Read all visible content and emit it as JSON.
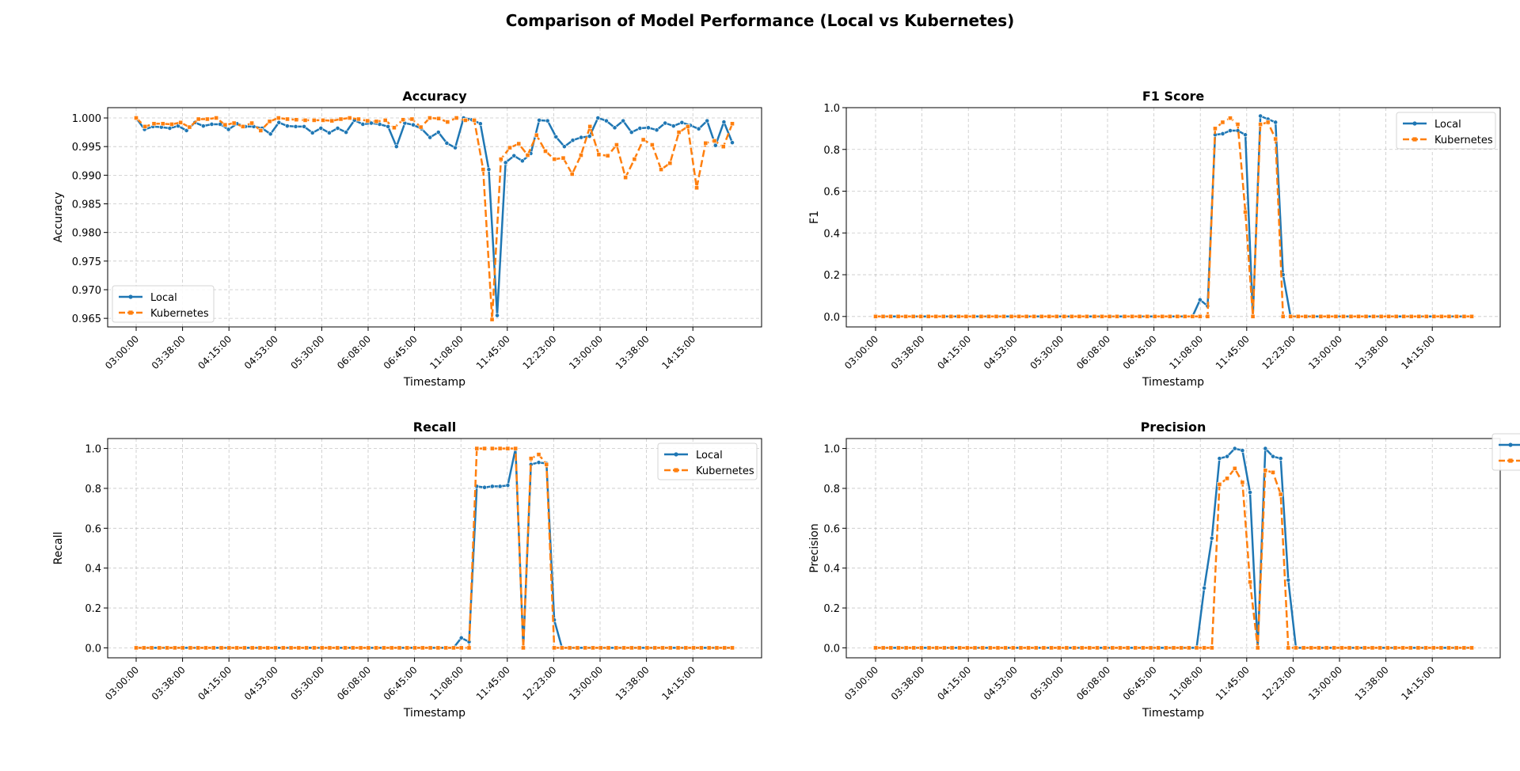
{
  "figure": {
    "title": "Comparison of Model Performance (Local vs Kubernetes)"
  },
  "colors": {
    "local": "#1f77b4",
    "kubernetes": "#ff7f0e",
    "grid": "#b0b0b0"
  },
  "chart_data": [
    {
      "type": "line",
      "title": "Accuracy",
      "xlabel": "Timestamp",
      "ylabel": "Accuracy",
      "grid": true,
      "legend_position": "lower-left",
      "ylim": [
        0.9635,
        1.0018
      ],
      "yticks": [
        0.965,
        0.97,
        0.975,
        0.98,
        0.985,
        0.99,
        0.995,
        1.0
      ],
      "ytick_labels": [
        "0.965",
        "0.970",
        "0.975",
        "0.980",
        "0.985",
        "0.990",
        "0.995",
        "1.000"
      ],
      "xtick_labels": [
        "03:00:00",
        "03:38:00",
        "04:15:00",
        "04:53:00",
        "05:30:00",
        "06:08:00",
        "06:45:00",
        "11:08:00",
        "11:45:00",
        "12:23:00",
        "13:00:00",
        "13:38:00",
        "14:15:00"
      ],
      "series": [
        {
          "name": "Local",
          "values": [
            1.0,
            0.998,
            0.9985,
            0.9984,
            0.9982,
            0.9986,
            0.9978,
            0.9992,
            0.9986,
            0.9989,
            0.9989,
            0.998,
            0.999,
            0.9985,
            0.9985,
            0.9982,
            0.9972,
            0.9992,
            0.9986,
            0.9985,
            0.9985,
            0.9974,
            0.9982,
            0.9974,
            0.9982,
            0.9975,
            0.9996,
            0.9989,
            0.9991,
            0.9989,
            0.9985,
            0.995,
            0.9991,
            0.9988,
            0.9981,
            0.9966,
            0.9975,
            0.9956,
            0.9948,
            1.0,
            0.9997,
            0.999,
            0.991,
            0.9655,
            0.9922,
            0.9934,
            0.9925,
            0.9938,
            0.9996,
            0.9995,
            0.9967,
            0.995,
            0.9961,
            0.9966,
            0.9968,
            1.0,
            0.9995,
            0.9983,
            0.9995,
            0.9975,
            0.9982,
            0.9983,
            0.9979,
            0.9991,
            0.9986,
            0.9992,
            0.9987,
            0.9981,
            0.9995,
            0.9952,
            0.9993,
            0.9957
          ]
        },
        {
          "name": "Kubernetes",
          "values": [
            1.0,
            0.9985,
            0.999,
            0.999,
            0.9989,
            0.9992,
            0.9984,
            0.9998,
            0.9998,
            1.0,
            0.9988,
            0.9991,
            0.9985,
            0.9991,
            0.9978,
            0.9994,
            1.0,
            0.9998,
            0.9997,
            0.9996,
            0.9996,
            0.9996,
            0.9995,
            0.9998,
            1.0,
            0.9998,
            0.9995,
            0.9994,
            0.9996,
            0.9983,
            0.9997,
            0.9998,
            0.9984,
            1.0,
            0.9999,
            0.9993,
            1.0,
            0.9996,
            0.9996,
            0.991,
            0.9648,
            0.9928,
            0.9948,
            0.9955,
            0.9935,
            0.997,
            0.9942,
            0.9928,
            0.993,
            0.9902,
            0.9935,
            0.9985,
            0.9936,
            0.9934,
            0.9953,
            0.9896,
            0.9928,
            0.9962,
            0.9953,
            0.991,
            0.9921,
            0.9975,
            0.9985,
            0.9878,
            0.9956,
            0.996,
            0.995,
            0.999
          ]
        }
      ]
    },
    {
      "type": "line",
      "title": "F1 Score",
      "xlabel": "Timestamp",
      "ylabel": "F1",
      "grid": true,
      "legend_position": "upper-right",
      "ylim": [
        -0.05,
        1.0
      ],
      "yticks": [
        0,
        0.2,
        0.4,
        0.6,
        0.8,
        1.0
      ],
      "ytick_labels": [
        "0.0",
        "0.2",
        "0.4",
        "0.6",
        "0.8",
        "1.0"
      ],
      "xtick_labels": [
        "03:00:00",
        "03:38:00",
        "04:15:00",
        "04:53:00",
        "05:30:00",
        "06:08:00",
        "06:45:00",
        "11:08:00",
        "11:45:00",
        "12:23:00",
        "13:00:00",
        "13:38:00",
        "14:15:00"
      ],
      "series": [
        {
          "name": "Local",
          "values": [
            0,
            0,
            0,
            0,
            0,
            0,
            0,
            0,
            0,
            0,
            0,
            0,
            0,
            0,
            0,
            0,
            0,
            0,
            0,
            0,
            0,
            0,
            0,
            0,
            0,
            0,
            0,
            0,
            0,
            0,
            0,
            0,
            0,
            0,
            0,
            0,
            0,
            0,
            0,
            0,
            0,
            0,
            0,
            0.08,
            0.05,
            0.87,
            0.875,
            0.89,
            0.89,
            0.87,
            0.0,
            0.96,
            0.945,
            0.93,
            0.2,
            0,
            0,
            0,
            0,
            0,
            0,
            0,
            0,
            0,
            0,
            0,
            0,
            0,
            0,
            0,
            0,
            0,
            0,
            0,
            0,
            0,
            0,
            0,
            0,
            0
          ]
        },
        {
          "name": "Kubernetes",
          "values": [
            0,
            0,
            0,
            0,
            0,
            0,
            0,
            0,
            0,
            0,
            0,
            0,
            0,
            0,
            0,
            0,
            0,
            0,
            0,
            0,
            0,
            0,
            0,
            0,
            0,
            0,
            0,
            0,
            0,
            0,
            0,
            0,
            0,
            0,
            0,
            0,
            0,
            0,
            0,
            0,
            0,
            0,
            0,
            0,
            0,
            0.9,
            0.93,
            0.95,
            0.92,
            0.5,
            0.0,
            0.92,
            0.93,
            0.85,
            0.0,
            0,
            0,
            0,
            0,
            0,
            0,
            0,
            0,
            0,
            0,
            0,
            0,
            0,
            0,
            0,
            0,
            0,
            0,
            0,
            0,
            0,
            0,
            0,
            0,
            0
          ]
        }
      ]
    },
    {
      "type": "line",
      "title": "Recall",
      "xlabel": "Timestamp",
      "ylabel": "Recall",
      "grid": true,
      "legend_position": "upper-right",
      "ylim": [
        -0.05,
        1.05
      ],
      "yticks": [
        0,
        0.2,
        0.4,
        0.6,
        0.8,
        1.0
      ],
      "ytick_labels": [
        "0.0",
        "0.2",
        "0.4",
        "0.6",
        "0.8",
        "1.0"
      ],
      "xtick_labels": [
        "03:00:00",
        "03:38:00",
        "04:15:00",
        "04:53:00",
        "05:30:00",
        "06:08:00",
        "06:45:00",
        "11:08:00",
        "11:45:00",
        "12:23:00",
        "13:00:00",
        "13:38:00",
        "14:15:00"
      ],
      "series": [
        {
          "name": "Local",
          "values": [
            0,
            0,
            0,
            0,
            0,
            0,
            0,
            0,
            0,
            0,
            0,
            0,
            0,
            0,
            0,
            0,
            0,
            0,
            0,
            0,
            0,
            0,
            0,
            0,
            0,
            0,
            0,
            0,
            0,
            0,
            0,
            0,
            0,
            0,
            0,
            0,
            0,
            0,
            0,
            0,
            0,
            0,
            0.05,
            0.03,
            0.81,
            0.805,
            0.81,
            0.81,
            0.815,
            1.0,
            0.0,
            0.92,
            0.93,
            0.925,
            0.14,
            0,
            0,
            0,
            0,
            0,
            0,
            0,
            0,
            0,
            0,
            0,
            0,
            0,
            0,
            0,
            0,
            0,
            0,
            0,
            0,
            0,
            0,
            0
          ]
        },
        {
          "name": "Kubernetes",
          "values": [
            0,
            0,
            0,
            0,
            0,
            0,
            0,
            0,
            0,
            0,
            0,
            0,
            0,
            0,
            0,
            0,
            0,
            0,
            0,
            0,
            0,
            0,
            0,
            0,
            0,
            0,
            0,
            0,
            0,
            0,
            0,
            0,
            0,
            0,
            0,
            0,
            0,
            0,
            0,
            0,
            0,
            0,
            0,
            0,
            1.0,
            1.0,
            1.0,
            1.0,
            1.0,
            1.0,
            0.0,
            0.95,
            0.97,
            0.92,
            0.0,
            0,
            0,
            0,
            0,
            0,
            0,
            0,
            0,
            0,
            0,
            0,
            0,
            0,
            0,
            0,
            0,
            0,
            0,
            0,
            0,
            0,
            0,
            0
          ]
        }
      ]
    },
    {
      "type": "line",
      "title": "Precision",
      "xlabel": "Timestamp",
      "ylabel": "Precision",
      "grid": true,
      "legend_position": "outside-right",
      "ylim": [
        -0.05,
        1.05
      ],
      "yticks": [
        0,
        0.2,
        0.4,
        0.6,
        0.8,
        1.0
      ],
      "ytick_labels": [
        "0.0",
        "0.2",
        "0.4",
        "0.6",
        "0.8",
        "1.0"
      ],
      "xtick_labels": [
        "03:00:00",
        "03:38:00",
        "04:15:00",
        "04:53:00",
        "05:30:00",
        "06:08:00",
        "06:45:00",
        "11:08:00",
        "11:45:00",
        "12:23:00",
        "13:00:00",
        "13:38:00",
        "14:15:00"
      ],
      "series": [
        {
          "name": "Local",
          "values": [
            0,
            0,
            0,
            0,
            0,
            0,
            0,
            0,
            0,
            0,
            0,
            0,
            0,
            0,
            0,
            0,
            0,
            0,
            0,
            0,
            0,
            0,
            0,
            0,
            0,
            0,
            0,
            0,
            0,
            0,
            0,
            0,
            0,
            0,
            0,
            0,
            0,
            0,
            0,
            0,
            0,
            0,
            0,
            0.3,
            0.55,
            0.95,
            0.96,
            1.0,
            0.99,
            0.78,
            0.0,
            1.0,
            0.96,
            0.95,
            0.34,
            0,
            0,
            0,
            0,
            0,
            0,
            0,
            0,
            0,
            0,
            0,
            0,
            0,
            0,
            0,
            0,
            0,
            0,
            0,
            0,
            0,
            0,
            0,
            0
          ]
        },
        {
          "name": "Kubernetes",
          "values": [
            0,
            0,
            0,
            0,
            0,
            0,
            0,
            0,
            0,
            0,
            0,
            0,
            0,
            0,
            0,
            0,
            0,
            0,
            0,
            0,
            0,
            0,
            0,
            0,
            0,
            0,
            0,
            0,
            0,
            0,
            0,
            0,
            0,
            0,
            0,
            0,
            0,
            0,
            0,
            0,
            0,
            0,
            0,
            0,
            0,
            0.82,
            0.85,
            0.9,
            0.83,
            0.33,
            0.0,
            0.89,
            0.88,
            0.77,
            0.0,
            0,
            0,
            0,
            0,
            0,
            0,
            0,
            0,
            0,
            0,
            0,
            0,
            0,
            0,
            0,
            0,
            0,
            0,
            0,
            0,
            0,
            0,
            0,
            0
          ]
        }
      ]
    }
  ]
}
